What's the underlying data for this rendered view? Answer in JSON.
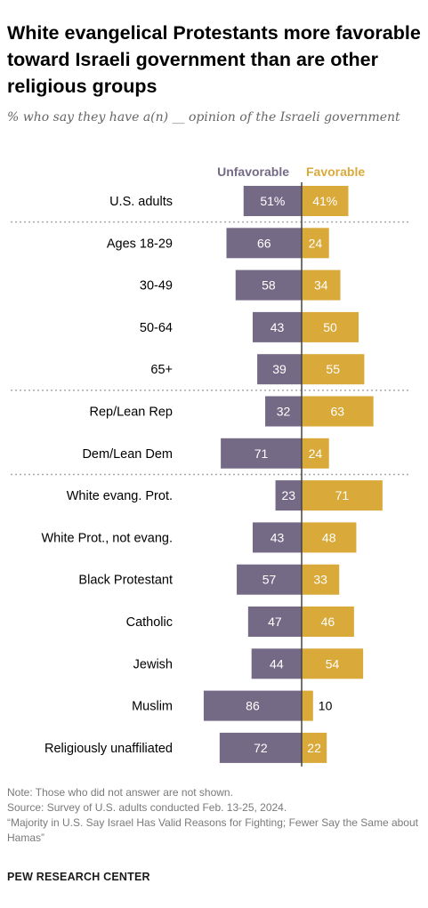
{
  "title": "White evangelical Protestants more favorable toward Israeli government than are other religious groups",
  "subtitle": "% who say they have a(n) __ opinion of the Israeli government",
  "colors": {
    "unfavorable": "#756a85",
    "favorable": "#d9a93a",
    "axis": "#444444",
    "divider": "#aaaaaa"
  },
  "chart_data": {
    "type": "bar",
    "orientation": "horizontal-diverging",
    "legend": {
      "unfavorable": "Unfavorable",
      "favorable": "Favorable",
      "placement": "top"
    },
    "categories": [
      "U.S. adults",
      "Ages 18-29",
      "30-49",
      "50-64",
      "65+",
      "Rep/Lean Rep",
      "Dem/Lean Dem",
      "White evang. Prot.",
      "White Prot., not evang.",
      "Black Protestant",
      "Catholic",
      "Jewish",
      "Muslim",
      "Religiously unaffiliated"
    ],
    "series": [
      {
        "name": "Unfavorable",
        "values": [
          51,
          66,
          58,
          43,
          39,
          32,
          71,
          23,
          43,
          57,
          47,
          44,
          86,
          72
        ]
      },
      {
        "name": "Favorable",
        "values": [
          41,
          24,
          34,
          50,
          55,
          63,
          24,
          71,
          48,
          33,
          46,
          54,
          10,
          22
        ]
      }
    ],
    "value_labels": {
      "unfavorable": [
        "51%",
        "66",
        "58",
        "43",
        "39",
        "32",
        "71",
        "23",
        "43",
        "57",
        "47",
        "44",
        "86",
        "72"
      ],
      "favorable": [
        "41%",
        "24",
        "34",
        "50",
        "55",
        "63",
        "24",
        "71",
        "48",
        "33",
        "46",
        "54",
        "10",
        "22"
      ]
    },
    "groups": [
      [
        0
      ],
      [
        1,
        2,
        3,
        4
      ],
      [
        5,
        6
      ],
      [
        7,
        8,
        9,
        10,
        11,
        12,
        13
      ]
    ]
  },
  "notes": [
    "Note: Those who did not answer are not shown.",
    "Source: Survey of U.S. adults conducted Feb. 13-25, 2024.",
    "“Majority in U.S. Say Israel Has Valid Reasons for Fighting; Fewer Say the Same about Hamas”"
  ],
  "footer": "PEW RESEARCH CENTER"
}
